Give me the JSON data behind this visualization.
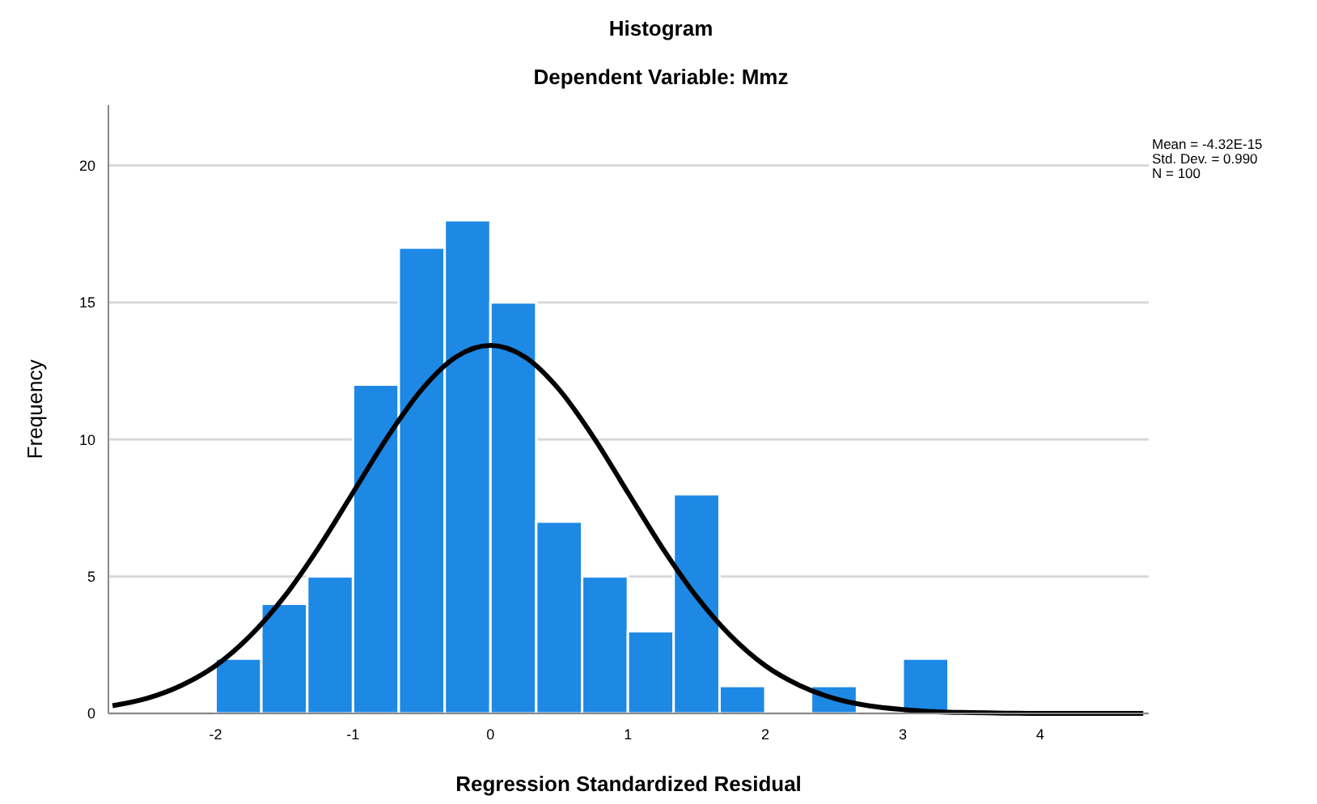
{
  "chart_data": {
    "type": "histogram",
    "title": "Histogram",
    "subtitle": "Dependent Variable: Mmz",
    "xlabel": "Regression Standardized Residual",
    "ylabel": "Frequency",
    "bins": [
      -2,
      -1.667,
      -1.333,
      -1,
      -0.667,
      -0.333,
      0,
      0.333,
      0.667,
      1,
      1.333,
      1.667,
      2,
      2.333,
      2.667,
      3,
      3.333
    ],
    "values": [
      2,
      4,
      5,
      12,
      17,
      18,
      15,
      7,
      5,
      3,
      8,
      1,
      0,
      1,
      0,
      2
    ],
    "color": "#1e88e5",
    "series": [
      {
        "type": "line",
        "color": "#000000",
        "x": [
          -2.75,
          -2.5,
          -2.25,
          -2,
          -1.75,
          -1.5,
          -1.25,
          -1,
          -0.75,
          -0.5,
          -0.25,
          0,
          0.25,
          0.5,
          0.75,
          1,
          1.25,
          1.5,
          1.75,
          2,
          2.25,
          2.5,
          2.75,
          3,
          3.25,
          3.5,
          3.75,
          4,
          4.25,
          4.5,
          4.75
        ],
        "values": [
          0.28,
          0.55,
          1.02,
          1.74,
          2.82,
          4.26,
          6.05,
          8.06,
          10.08,
          11.82,
          13.01,
          13.43,
          13.01,
          11.82,
          10.08,
          8.06,
          6.05,
          4.26,
          2.82,
          1.74,
          1.02,
          0.55,
          0.28,
          0.14,
          0.06,
          0.03,
          0.01,
          0,
          0,
          0,
          0
        ]
      }
    ],
    "xlim": [
      -2.78,
      4.79
    ],
    "xticks": [
      -2,
      -1,
      0,
      1,
      2,
      3,
      4
    ],
    "ylim": [
      0,
      22.2
    ],
    "yticks": [
      0,
      5,
      10,
      15,
      20
    ],
    "grid": "y",
    "legend": false,
    "annotations": [
      "Mean = -4.32E-15",
      "Std. Dev. = 0.990",
      "N = 100"
    ]
  }
}
